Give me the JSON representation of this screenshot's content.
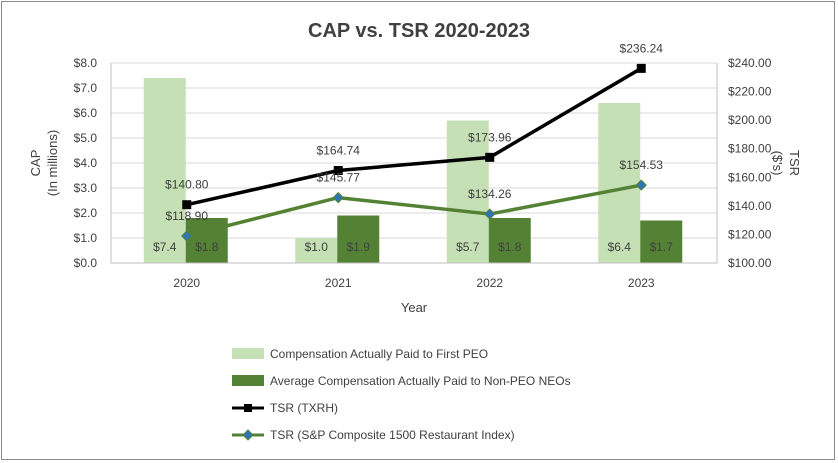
{
  "chart_data": {
    "type": "bar",
    "title": "CAP vs. TSR 2020-2023",
    "xlabel": "Year",
    "ylabel": [
      "CAP",
      "(In millions)"
    ],
    "y2label": [
      "TSR",
      "($'s)"
    ],
    "categories": [
      "2020",
      "2021",
      "2022",
      "2023"
    ],
    "ylim": [
      0,
      8
    ],
    "y2lim": [
      100,
      240
    ],
    "yticks": [
      "$0.0",
      "$1.0",
      "$2.0",
      "$3.0",
      "$4.0",
      "$5.0",
      "$6.0",
      "$7.0",
      "$8.0"
    ],
    "y2ticks": [
      "$100.00",
      "$120.00",
      "$140.00",
      "$160.00",
      "$180.00",
      "$200.00",
      "$220.00",
      "$240.00"
    ],
    "gridlines": true,
    "series": [
      {
        "name": "Compensation Actually Paid to First PEO",
        "type": "bar",
        "axis": "left",
        "color": "#c5e0b4",
        "values": [
          7.4,
          1.0,
          5.7,
          6.4
        ],
        "labels": [
          "$7.4",
          "$1.0",
          "$5.7",
          "$6.4"
        ]
      },
      {
        "name": "Average Compensation Actually Paid to Non-PEO NEOs",
        "type": "bar",
        "axis": "left",
        "color": "#548235",
        "values": [
          1.8,
          1.9,
          1.8,
          1.7
        ],
        "labels": [
          "$1.8",
          "$1.9",
          "$1.8",
          "$1.7"
        ]
      },
      {
        "name": "TSR (TXRH)",
        "type": "line",
        "axis": "right",
        "color": "#000000",
        "marker": "square",
        "values": [
          140.8,
          164.74,
          173.96,
          236.24
        ],
        "labels": [
          "$140.80",
          "$164.74",
          "$173.96",
          "$236.24"
        ]
      },
      {
        "name": "TSR (S&P Composite 1500 Restaurant Index)",
        "type": "line",
        "axis": "right",
        "color": "#548235",
        "markerColor": "#2e75b6",
        "marker": "diamond",
        "values": [
          118.9,
          145.77,
          134.26,
          154.53
        ],
        "labels": [
          "$118.90",
          "$145.77",
          "$134.26",
          "$154.53"
        ]
      }
    ],
    "legend_position": "bottom"
  }
}
